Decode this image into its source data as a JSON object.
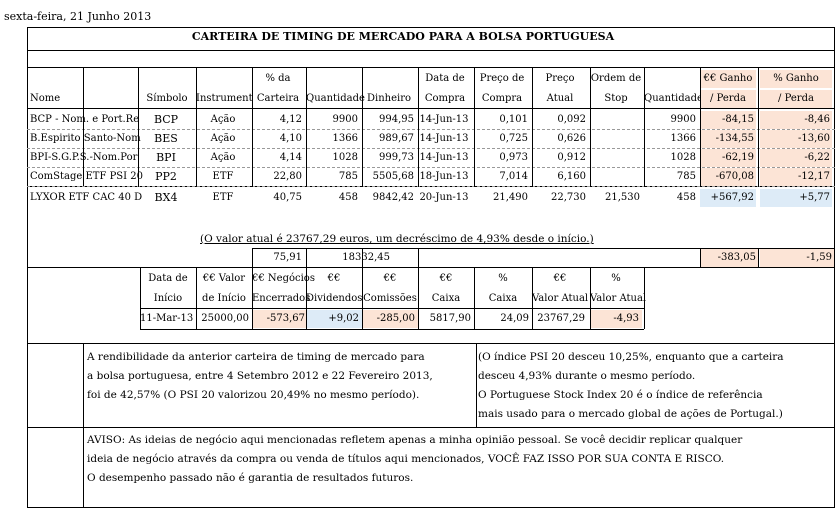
{
  "date": "sexta-feira, 21 Junho 2013",
  "title": "CARTEIRA DE TIMING DE MERCADO PARA A BOLSA PORTUGUESA",
  "headers": {
    "nome": "Nome",
    "simbolo": "Símbolo",
    "instrumento": "Instrument",
    "pct_carteira_1": "% da",
    "pct_carteira_2": "Carteira",
    "quantidade": "Quantidade",
    "dinheiro": "Dinheiro",
    "data_compra_1": "Data de",
    "data_compra_2": "Compra",
    "preco_compra_1": "Preço de",
    "preco_compra_2": "Compra",
    "preco_atual_1": "Preço",
    "preco_atual_2": "Atual",
    "ordem_stop_1": "Ordem de",
    "ordem_stop_2": "Stop",
    "quantidade2": "Quantidade",
    "ganho_eur_1": "€€ Ganho",
    "ganho_eur_2": "/ Perda",
    "ganho_pct_1": "% Ganho",
    "ganho_pct_2": "/ Perda"
  },
  "rows": [
    {
      "nome": "BCP - Nom. e Port.Re",
      "simbolo": "BCP",
      "instrumento": "Ação",
      "pct": "4,12",
      "qtd": "9900",
      "dinheiro": "994,95",
      "data": "14-Jun-13",
      "compra": "0,101",
      "atual": "0,092",
      "stop": "",
      "qtd2": "9900",
      "ganho": "-84,15",
      "ganho_pct": "-8,46"
    },
    {
      "nome": "B.Espirito Santo-Nom",
      "simbolo": "BES",
      "instrumento": "Ação",
      "pct": "4,10",
      "qtd": "1366",
      "dinheiro": "989,67",
      "data": "14-Jun-13",
      "compra": "0,725",
      "atual": "0,626",
      "stop": "",
      "qtd2": "1366",
      "ganho": "-134,55",
      "ganho_pct": "-13,60"
    },
    {
      "nome": "BPI-S.G.P.S.-Nom.Por",
      "simbolo": "BPI",
      "instrumento": "Ação",
      "pct": "4,14",
      "qtd": "1028",
      "dinheiro": "999,73",
      "data": "14-Jun-13",
      "compra": "0,973",
      "atual": "0,912",
      "stop": "",
      "qtd2": "1028",
      "ganho": "-62,19",
      "ganho_pct": "-6,22"
    },
    {
      "nome": "ComStage ETF PSI 20",
      "simbolo": "PP2",
      "instrumento": "ETF",
      "pct": "22,80",
      "qtd": "785",
      "dinheiro": "5505,68",
      "data": "18-Jun-13",
      "compra": "7,014",
      "atual": "6,160",
      "stop": "",
      "qtd2": "785",
      "ganho": "-670,08",
      "ganho_pct": "-12,17"
    },
    {
      "nome": "LYXOR ETF CAC 40 D",
      "simbolo": "BX4",
      "instrumento": "ETF",
      "pct": "40,75",
      "qtd": "458",
      "dinheiro": "9842,42",
      "data": "20-Jun-13",
      "compra": "21,490",
      "atual": "22,730",
      "stop": "21,530",
      "qtd2": "458",
      "ganho": "+567,92",
      "ganho_pct": "+5,77"
    }
  ],
  "summary_note": "(O valor atual é 23767,29 euros, um decréscimo de 4,93% desde o início.)",
  "totals": {
    "pct": "75,91",
    "dinheiro": "18332,45",
    "ganho": "-383,05",
    "ganho_pct": "-1,59"
  },
  "stats_headers": [
    [
      "Data de",
      "Início"
    ],
    [
      "€€ Valor",
      "de Início"
    ],
    [
      "€€ Negócios",
      "Encerrados"
    ],
    [
      "€€",
      "Dividendos"
    ],
    [
      "€€",
      "Comissões"
    ],
    [
      "€€",
      "Caixa"
    ],
    [
      "%",
      "Caixa"
    ],
    [
      "€€",
      "Valor Atual"
    ],
    [
      "%",
      "Valor Atual"
    ]
  ],
  "stats_values": [
    "11-Mar-13",
    "25000,00",
    "-573,67",
    "+9,02",
    "-285,00",
    "5817,90",
    "24,09",
    "23767,29",
    "-4,93"
  ],
  "para_left": [
    "A rendibilidade da anterior carteira de timing de mercado para",
    "a bolsa portuguesa, entre 4 Setembro 2012 e 22 Fevereiro 2013,",
    "foi de 42,57% (O PSI 20 valorizou 20,49% no mesmo período)."
  ],
  "para_right": [
    "(O índice PSI 20 desceu 10,25%, enquanto que a carteira",
    "desceu 4,93% durante o mesmo período.",
    "O Portuguese Stock Index 20 é o índice de referência",
    "mais usado para o mercado global de ações de Portugal.)"
  ],
  "disclaimer": [
    "AVISO: As ideias de negócio aqui mencionadas refletem apenas a minha opinião pessoal. Se você decidir replicar qualquer",
    "ideia de negócio através da compra ou venda de títulos aqui mencionados, VOCÊ FAZ ISSO POR SUA CONTA E RISCO.",
    "O desempenho passado não é garantia de resultados futuros."
  ],
  "colors": {
    "negative_bg": "#fce4d6",
    "positive_bg": "#ddebf7"
  }
}
